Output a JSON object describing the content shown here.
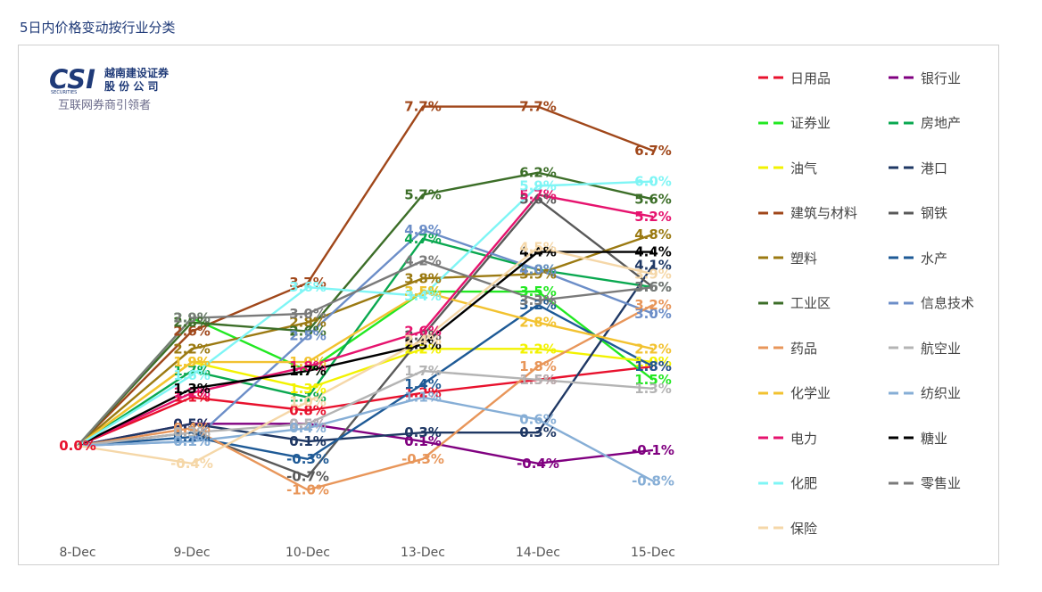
{
  "page": {
    "title": "5日内价格变动按行业分类",
    "logo_text_cn_top": "越南建设证券",
    "logo_text_cn_bottom": "股 份 公 司",
    "logo_letters": "CSI",
    "logo_small": "SECURITIES",
    "tagline": "互联网券商引领者"
  },
  "chart_data": {
    "type": "line",
    "title": "5日内价格变动按行业分类",
    "x": [
      "8-Dec",
      "9-Dec",
      "10-Dec",
      "13-Dec",
      "14-Dec",
      "15-Dec"
    ],
    "ylim": [
      -1.5,
      8.5
    ],
    "unit": "%",
    "legend_position": "right",
    "series": [
      {
        "name": "日用品",
        "color": "#e8112d",
        "values": [
          0.0,
          1.1,
          0.8,
          1.2,
          1.5,
          1.8
        ]
      },
      {
        "name": "银行业",
        "color": "#800080",
        "values": [
          0.0,
          0.5,
          0.5,
          0.1,
          -0.4,
          -0.1
        ]
      },
      {
        "name": "证券业",
        "color": "#22e822",
        "values": [
          0.0,
          2.9,
          1.7,
          3.5,
          3.5,
          1.5
        ]
      },
      {
        "name": "房地产",
        "color": "#0aa850",
        "values": [
          0.0,
          1.7,
          1.1,
          4.7,
          4.0,
          3.6
        ]
      },
      {
        "name": "油气",
        "color": "#f2f200",
        "values": [
          0.0,
          1.9,
          1.3,
          2.2,
          2.2,
          1.9
        ]
      },
      {
        "name": "港口",
        "color": "#1f3864",
        "values": [
          0.0,
          0.5,
          0.1,
          0.3,
          0.3,
          4.1
        ]
      },
      {
        "name": "建筑与材料",
        "color": "#a0471a",
        "values": [
          0.0,
          2.6,
          3.7,
          7.7,
          7.7,
          6.7
        ]
      },
      {
        "name": "钢铁",
        "color": "#595959",
        "values": [
          0.0,
          0.3,
          -0.7,
          2.5,
          5.6,
          3.6
        ]
      },
      {
        "name": "塑料",
        "color": "#9b7a12",
        "values": [
          0.0,
          2.2,
          2.8,
          3.8,
          3.9,
          4.8
        ]
      },
      {
        "name": "水产",
        "color": "#1e5a96",
        "values": [
          0.0,
          0.2,
          -0.3,
          1.4,
          3.2,
          1.8
        ]
      },
      {
        "name": "工业区",
        "color": "#3c6e28",
        "values": [
          0.0,
          2.8,
          2.6,
          5.7,
          6.2,
          5.6
        ]
      },
      {
        "name": "信息技术",
        "color": "#6c8ec8",
        "values": [
          0.0,
          0.1,
          2.5,
          4.9,
          4.0,
          3.0
        ]
      },
      {
        "name": "药品",
        "color": "#e8965a",
        "values": [
          0.0,
          0.4,
          -1.0,
          -0.3,
          1.8,
          3.2
        ]
      },
      {
        "name": "航空业",
        "color": "#b4b4b4",
        "values": [
          0.0,
          0.3,
          0.5,
          1.7,
          1.5,
          1.3
        ]
      },
      {
        "name": "化学业",
        "color": "#f2c230",
        "values": [
          0.0,
          1.9,
          1.9,
          3.5,
          2.8,
          2.2
        ]
      },
      {
        "name": "纺织业",
        "color": "#86aed6",
        "values": [
          0.0,
          0.1,
          0.4,
          1.1,
          0.6,
          -0.8
        ]
      },
      {
        "name": "电力",
        "color": "#e6136e",
        "values": [
          0.0,
          1.2,
          1.8,
          2.6,
          5.7,
          5.2
        ]
      },
      {
        "name": "糖业",
        "color": "#000000",
        "values": [
          0.0,
          1.3,
          1.7,
          2.3,
          4.4,
          4.4
        ]
      },
      {
        "name": "化肥",
        "color": "#7ff5f5",
        "values": [
          0.0,
          1.6,
          3.6,
          3.4,
          5.9,
          6.0
        ]
      },
      {
        "name": "零售业",
        "color": "#7a7a7a",
        "values": [
          0.0,
          2.9,
          3.0,
          4.2,
          3.3,
          3.6
        ]
      },
      {
        "name": "保险",
        "color": "#f5d7a8",
        "values": [
          0.0,
          -0.4,
          1.0,
          2.4,
          4.5,
          3.9
        ]
      }
    ]
  }
}
